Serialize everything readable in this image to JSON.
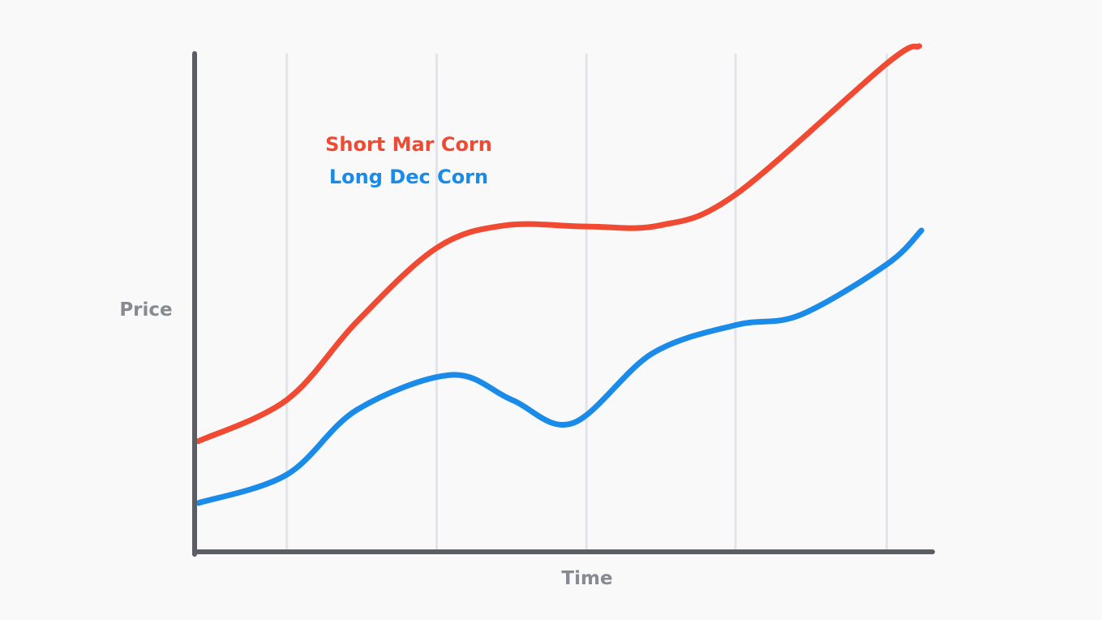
{
  "chart_data": {
    "type": "line",
    "title": "",
    "xlabel": "Time",
    "ylabel": "Price",
    "xlim": [
      0,
      100
    ],
    "ylim": [
      0,
      100
    ],
    "grid": true,
    "x_ticks": [
      12.5,
      32.8,
      53.1,
      73.3,
      93.8
    ],
    "legend_position": "top-left",
    "series": [
      {
        "name": "Short Mar Corn",
        "color": "#f04a32",
        "points": [
          [
            0.5,
            22.2
          ],
          [
            12.5,
            30.5
          ],
          [
            22.0,
            46.2
          ],
          [
            32.8,
            61.0
          ],
          [
            42.0,
            65.5
          ],
          [
            53.1,
            65.3
          ],
          [
            63.0,
            65.5
          ],
          [
            73.3,
            71.7
          ],
          [
            93.8,
            98.0
          ],
          [
            98.2,
            101.5
          ]
        ]
      },
      {
        "name": "Long Dec Corn",
        "color": "#1a8be8",
        "points": [
          [
            0.5,
            9.8
          ],
          [
            12.5,
            15.5
          ],
          [
            22.0,
            28.5
          ],
          [
            34.8,
            35.5
          ],
          [
            43.0,
            30.5
          ],
          [
            51.2,
            25.8
          ],
          [
            62.0,
            39.8
          ],
          [
            73.3,
            45.5
          ],
          [
            82.0,
            47.5
          ],
          [
            93.8,
            57.7
          ],
          [
            98.5,
            64.5
          ]
        ]
      }
    ]
  }
}
